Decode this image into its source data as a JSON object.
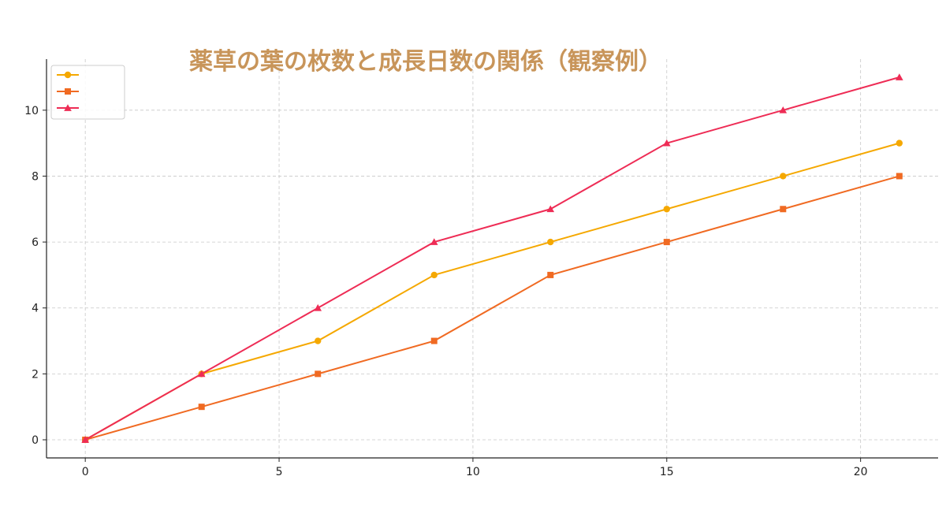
{
  "chart_data": {
    "type": "line",
    "title": "薬草の葉の枚数と成長日数の関係（観察例）",
    "title_color": "#c8955a",
    "xlabel": "",
    "ylabel": "",
    "xlim": [
      -1,
      22
    ],
    "ylim": [
      -0.55,
      11.55
    ],
    "x_ticks": [
      0,
      5,
      10,
      15,
      20
    ],
    "y_ticks": [
      0,
      2,
      4,
      6,
      8,
      10
    ],
    "grid": true,
    "legend_position": "top-left",
    "x": [
      0,
      3,
      6,
      9,
      12,
      15,
      18,
      21
    ],
    "series": [
      {
        "name": "",
        "color": "#f5a800",
        "marker": "circle",
        "values": [
          0,
          2,
          3,
          5,
          6,
          7,
          8,
          9
        ]
      },
      {
        "name": "",
        "color": "#f06a22",
        "marker": "square",
        "values": [
          0,
          1,
          2,
          3,
          5,
          6,
          7,
          8
        ]
      },
      {
        "name": "",
        "color": "#ee2c55",
        "marker": "triangle",
        "values": [
          0,
          2,
          4,
          6,
          7,
          9,
          10,
          11
        ]
      }
    ]
  }
}
